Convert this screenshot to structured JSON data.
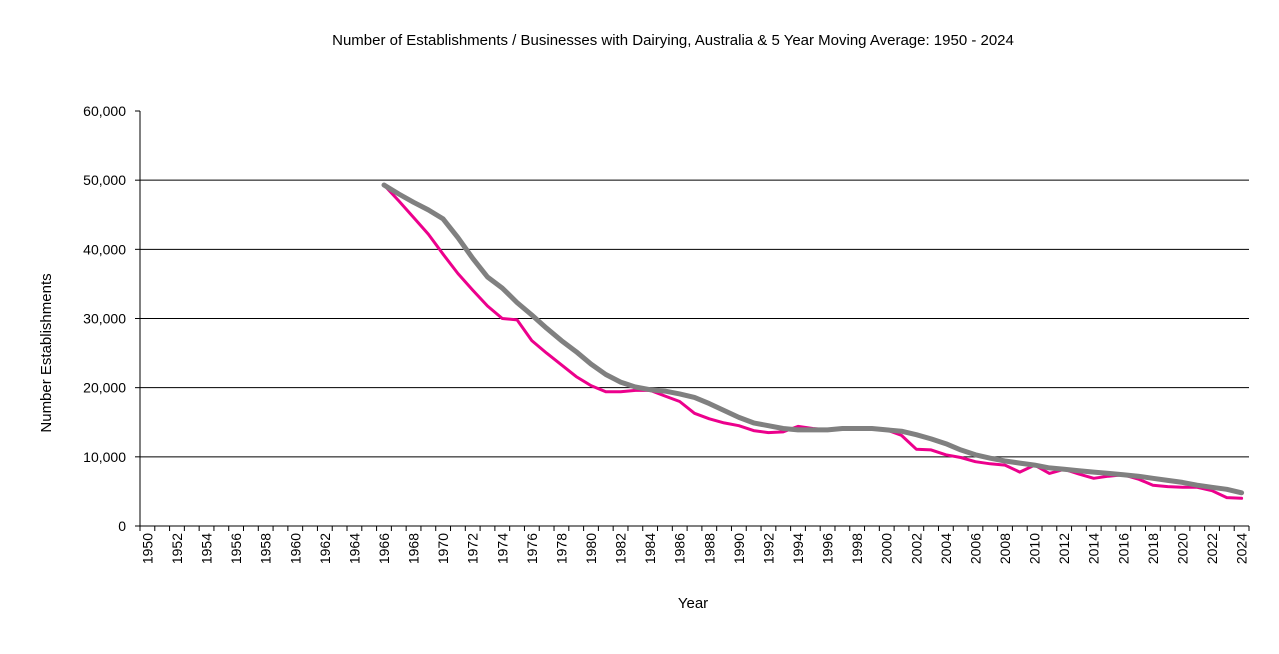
{
  "chart_data": {
    "type": "line",
    "title": "Number of Establishments / Businesses with Dairying, Australia & 5 Year Moving Average: 1950 - 2024",
    "xlabel": "Year",
    "ylabel": "Number Establishments",
    "xlim": [
      1950,
      2024
    ],
    "ylim": [
      0,
      60000
    ],
    "y_ticks": [
      0,
      10000,
      20000,
      30000,
      40000,
      50000,
      60000
    ],
    "y_tick_labels": [
      "0",
      "10,000",
      "20,000",
      "30,000",
      "40,000",
      "50,000",
      "60,000"
    ],
    "x_tick_labels": [
      "1950",
      "1952",
      "1954",
      "1956",
      "1958",
      "1960",
      "1962",
      "1964",
      "1966",
      "1968",
      "1970",
      "1972",
      "1974",
      "1976",
      "1978",
      "1980",
      "1982",
      "1984",
      "1986",
      "1988",
      "1990",
      "1992",
      "1994",
      "1996",
      "1998",
      "2000",
      "2002",
      "2004",
      "2006",
      "2008",
      "2010",
      "2012",
      "2014",
      "2016",
      "2018",
      "2020",
      "2022",
      "2024"
    ],
    "grid": "horizontal",
    "series": [
      {
        "name": "Number of Establishments",
        "color": "#ec008c",
        "x": [
          1966,
          1967,
          1968,
          1969,
          1970,
          1971,
          1972,
          1973,
          1974,
          1975,
          1976,
          1977,
          1978,
          1979,
          1980,
          1981,
          1982,
          1983,
          1984,
          1985,
          1986,
          1987,
          1988,
          1989,
          1990,
          1991,
          1992,
          1993,
          1994,
          1995,
          1996,
          1997,
          1998,
          1999,
          2000,
          2001,
          2002,
          2003,
          2004,
          2005,
          2006,
          2007,
          2008,
          2009,
          2010,
          2011,
          2012,
          2013,
          2014,
          2015,
          2016,
          2017,
          2018,
          2019,
          2020,
          2021,
          2022,
          2023,
          2024
        ],
        "values": [
          49300,
          47000,
          44600,
          42200,
          39300,
          36500,
          34100,
          31800,
          30000,
          29800,
          26800,
          25000,
          23300,
          21600,
          20300,
          19400,
          19400,
          19600,
          19600,
          18800,
          18000,
          16300,
          15500,
          14900,
          14500,
          13800,
          13500,
          13600,
          14400,
          14100,
          13900,
          14000,
          14100,
          14000,
          13900,
          13100,
          11100,
          11000,
          10300,
          9900,
          9300,
          9000,
          8800,
          7800,
          8800,
          7600,
          8200,
          7500,
          6900,
          7200,
          7400,
          6800,
          5900,
          5700,
          5600,
          5600,
          5100,
          4100,
          4000
        ]
      },
      {
        "name": "5 Year Moving Average",
        "color": "#808080",
        "x": [
          1966,
          1967,
          1968,
          1969,
          1970,
          1971,
          1972,
          1973,
          1974,
          1975,
          1976,
          1977,
          1978,
          1979,
          1980,
          1981,
          1982,
          1983,
          1984,
          1985,
          1986,
          1987,
          1988,
          1989,
          1990,
          1991,
          1992,
          1993,
          1994,
          1995,
          1996,
          1997,
          1998,
          1999,
          2000,
          2001,
          2002,
          2003,
          2004,
          2005,
          2006,
          2007,
          2008,
          2009,
          2010,
          2011,
          2012,
          2013,
          2014,
          2015,
          2016,
          2017,
          2018,
          2019,
          2020,
          2021,
          2022,
          2023,
          2024
        ],
        "values": [
          49300,
          48000,
          46800,
          45700,
          44400,
          41700,
          38700,
          36000,
          34400,
          32300,
          30500,
          28600,
          26800,
          25200,
          23400,
          21900,
          20800,
          20100,
          19700,
          19500,
          19100,
          18600,
          17700,
          16700,
          15700,
          14900,
          14500,
          14100,
          13900,
          13900,
          13900,
          14100,
          14100,
          14100,
          13900,
          13700,
          13200,
          12600,
          11900,
          11000,
          10300,
          9800,
          9400,
          9100,
          8800,
          8400,
          8200,
          8000,
          7800,
          7600,
          7400,
          7200,
          6900,
          6600,
          6300,
          5900,
          5600,
          5300,
          4800
        ]
      }
    ]
  }
}
